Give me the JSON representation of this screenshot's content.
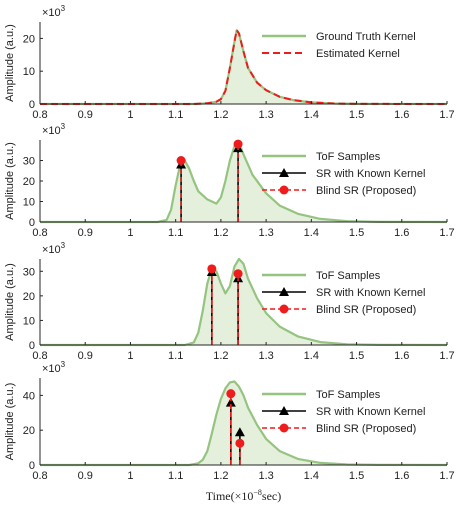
{
  "colors": {
    "ground_truth": "#94c47f",
    "fill": "#e4f0dc",
    "estimated": "#ee1c1c",
    "known": "#000000",
    "axis": "#262626"
  },
  "chart_data": [
    {
      "type": "area",
      "ylabel": "Amplitude (a.u.)",
      "multiplier": "×10",
      "multiplier_exp": "3",
      "xlim": [
        0.8,
        1.7
      ],
      "ylim": [
        0,
        25
      ],
      "xticks": [
        "0.8",
        "0.9",
        "1",
        "1.1",
        "1.2",
        "1.3",
        "1.4",
        "1.5",
        "1.6",
        "1.7"
      ],
      "yticks": [
        0,
        10,
        20
      ],
      "legend": [
        {
          "label": "Ground Truth Kernel",
          "style": "green"
        },
        {
          "label": "Estimated Kernel",
          "style": "red-dash"
        }
      ],
      "curve": {
        "x": [
          0.8,
          1.14,
          1.17,
          1.19,
          1.2,
          1.21,
          1.22,
          1.23,
          1.235,
          1.24,
          1.25,
          1.26,
          1.28,
          1.3,
          1.33,
          1.36,
          1.4,
          1.45,
          1.5,
          1.7
        ],
        "y": [
          0,
          0,
          0.2,
          0.7,
          1.5,
          4,
          11,
          19,
          22.5,
          21.5,
          16,
          11,
          6.5,
          4.2,
          2.2,
          1.2,
          0.5,
          0.15,
          0.03,
          0
        ]
      },
      "stems": []
    },
    {
      "type": "area",
      "ylabel": "Amplitude (a.u.)",
      "multiplier": "×10",
      "multiplier_exp": "3",
      "xlim": [
        0.8,
        1.7
      ],
      "ylim": [
        0,
        40
      ],
      "xticks": [
        "0.8",
        "0.9",
        "1",
        "1.1",
        "1.2",
        "1.3",
        "1.4",
        "1.5",
        "1.6",
        "1.7"
      ],
      "yticks": [
        0,
        10,
        20,
        30
      ],
      "legend": [
        {
          "label": "ToF Samples",
          "style": "green"
        },
        {
          "label": "SR with Known Kernel",
          "style": "black-stem"
        },
        {
          "label": "Blind SR (Proposed)",
          "style": "red-stem"
        }
      ],
      "curve": {
        "x": [
          0.8,
          1.06,
          1.08,
          1.09,
          1.1,
          1.11,
          1.12,
          1.13,
          1.14,
          1.15,
          1.17,
          1.19,
          1.2,
          1.21,
          1.22,
          1.23,
          1.24,
          1.25,
          1.27,
          1.3,
          1.33,
          1.37,
          1.42,
          1.48,
          1.55,
          1.7
        ],
        "y": [
          0,
          0,
          1,
          6,
          18,
          28,
          30,
          26,
          20,
          15,
          11,
          9,
          12,
          20,
          30,
          37,
          38.5,
          33,
          23,
          14,
          8,
          4,
          1.5,
          0.4,
          0.05,
          0
        ]
      },
      "stems": [
        {
          "x": 1.112,
          "known": 29,
          "blind": 30
        },
        {
          "x": 1.238,
          "known": 37,
          "blind": 38
        }
      ]
    },
    {
      "type": "area",
      "ylabel": "Amplitude (a.u.)",
      "multiplier": "×10",
      "multiplier_exp": "3",
      "xlim": [
        0.8,
        1.7
      ],
      "ylim": [
        0,
        35
      ],
      "xticks": [
        "0.8",
        "0.9",
        "1",
        "1.1",
        "1.2",
        "1.3",
        "1.4",
        "1.5",
        "1.6",
        "1.7"
      ],
      "yticks": [
        0,
        10,
        20,
        30
      ],
      "legend": [
        {
          "label": "ToF Samples",
          "style": "green"
        },
        {
          "label": "SR with Known Kernel",
          "style": "black-stem"
        },
        {
          "label": "Blind SR (Proposed)",
          "style": "red-stem"
        }
      ],
      "curve": {
        "x": [
          0.8,
          1.12,
          1.14,
          1.15,
          1.16,
          1.17,
          1.18,
          1.19,
          1.2,
          1.21,
          1.22,
          1.23,
          1.24,
          1.25,
          1.26,
          1.28,
          1.3,
          1.33,
          1.37,
          1.42,
          1.48,
          1.55,
          1.7
        ],
        "y": [
          0,
          0,
          1,
          5,
          14,
          25,
          31,
          30,
          25,
          21,
          24,
          32,
          35,
          33,
          27,
          19,
          13,
          7.5,
          3.5,
          1.2,
          0.3,
          0.05,
          0
        ]
      },
      "stems": [
        {
          "x": 1.18,
          "known": 30.5,
          "blind": 31
        },
        {
          "x": 1.238,
          "known": 28,
          "blind": 29
        }
      ]
    },
    {
      "type": "area",
      "ylabel": "Amplitude (a.u.)",
      "multiplier": "×10",
      "multiplier_exp": "3",
      "xlabel": "Time(×10",
      "xlabel_exp": "−8",
      "xlabel_tail": "sec)",
      "xlim": [
        0.8,
        1.7
      ],
      "ylim": [
        0,
        50
      ],
      "xticks": [
        "0.8",
        "0.9",
        "1",
        "1.1",
        "1.2",
        "1.3",
        "1.4",
        "1.5",
        "1.6",
        "1.7"
      ],
      "yticks": [
        0,
        20,
        40
      ],
      "legend": [
        {
          "label": "ToF Samples",
          "style": "green"
        },
        {
          "label": "SR with Known Kernel",
          "style": "black-stem"
        },
        {
          "label": "Blind SR (Proposed)",
          "style": "red-stem"
        }
      ],
      "curve": {
        "x": [
          0.8,
          1.13,
          1.15,
          1.16,
          1.17,
          1.18,
          1.19,
          1.2,
          1.21,
          1.22,
          1.23,
          1.24,
          1.25,
          1.26,
          1.28,
          1.3,
          1.33,
          1.37,
          1.42,
          1.48,
          1.55,
          1.7
        ],
        "y": [
          0,
          0,
          1,
          3,
          8,
          18,
          29,
          38,
          44,
          47.5,
          48,
          45,
          40,
          33,
          23,
          15,
          8,
          3.5,
          1.2,
          0.3,
          0.05,
          0
        ]
      },
      "stems": [
        {
          "x": 1.222,
          "known": 37,
          "blind": 41
        },
        {
          "x": 1.242,
          "known": 20,
          "blind": 12.5
        }
      ]
    }
  ]
}
